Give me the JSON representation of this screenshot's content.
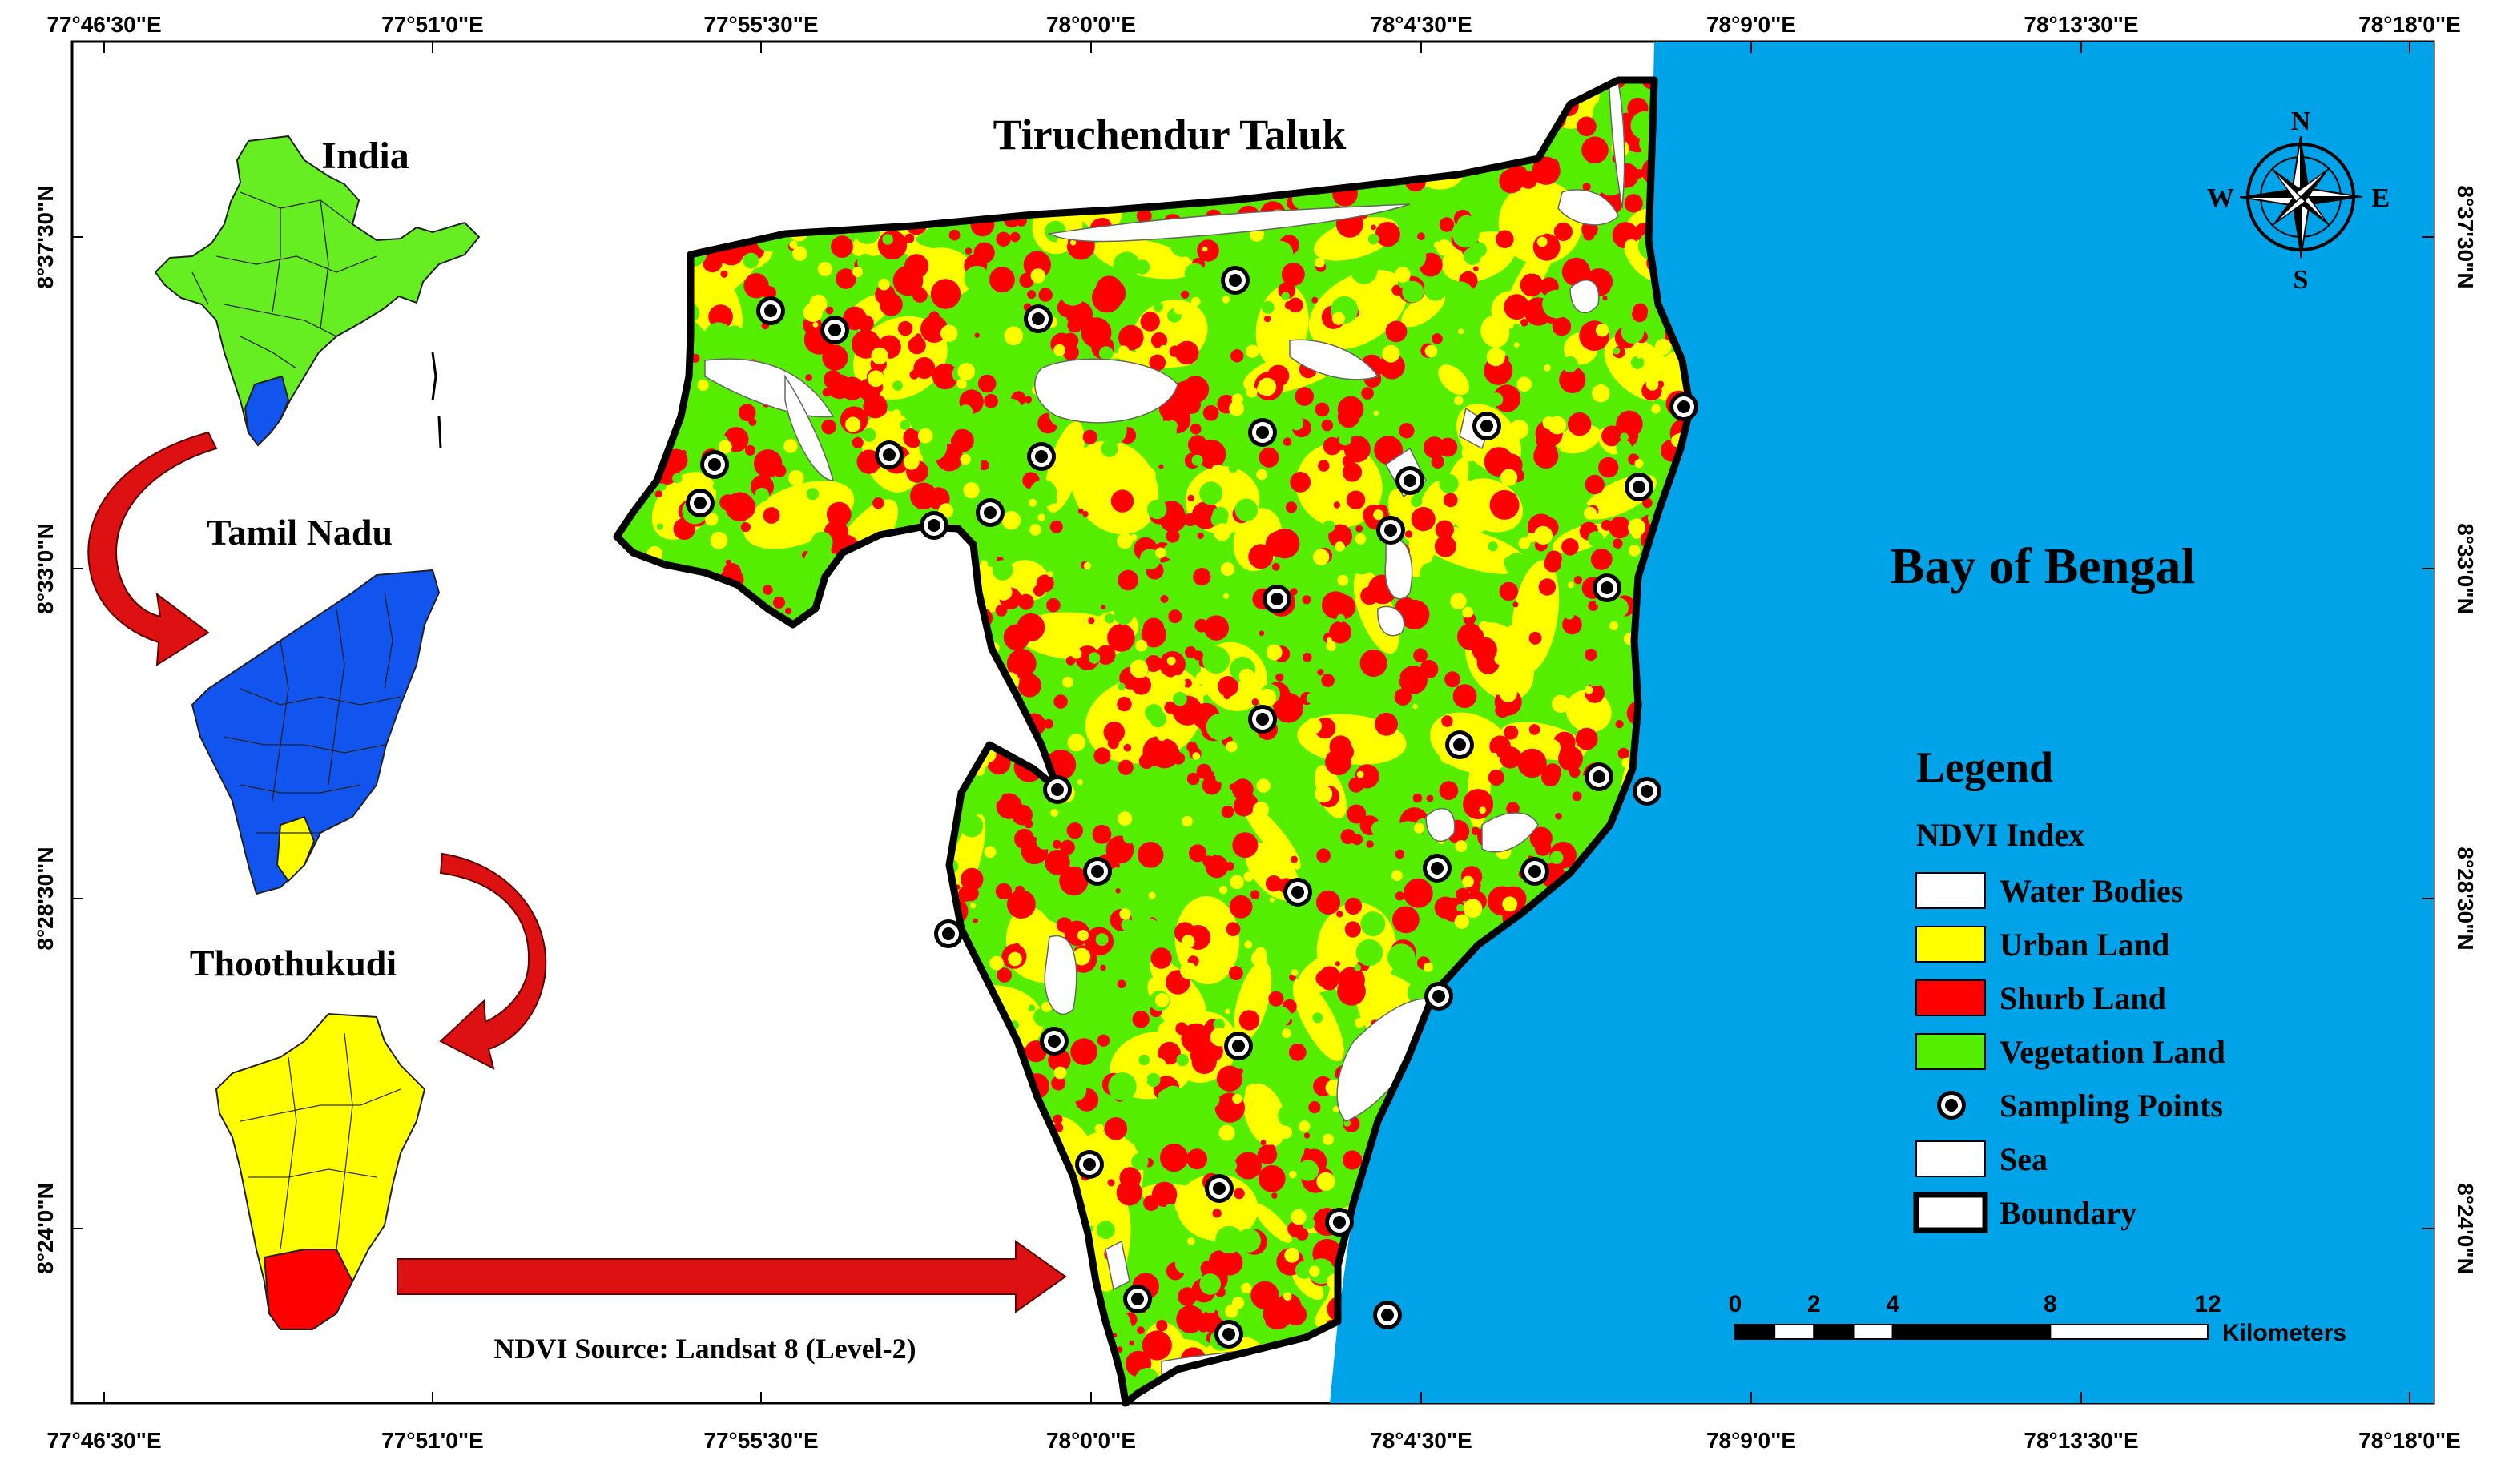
{
  "map_title": "Tiruchendur Taluk",
  "sea_label": "Bay of Bengal",
  "source_note": "NDVI Source: Landsat 8 (Level-2)",
  "inset": {
    "india_label": "India",
    "tamil_nadu_label": "Tamil Nadu",
    "thoothukudi_label": "Thoothukudi"
  },
  "coordinates": {
    "top_ticks": [
      "77°46'30\"E",
      "77°51'0\"E",
      "77°55'30\"E",
      "78°0'0\"E",
      "78°4'30\"E",
      "78°9'0\"E",
      "78°13'30\"E",
      "78°18'0\"E"
    ],
    "bottom_ticks": [
      "77°46'30\"E",
      "77°51'0\"E",
      "77°55'30\"E",
      "78°0'0\"E",
      "78°4'30\"E",
      "78°9'0\"E",
      "78°13'30\"E",
      "78°18'0\"E"
    ],
    "left_ticks": [
      "8°37'30\"N",
      "8°33'0\"N",
      "8°28'30\"N",
      "8°24'0\"N"
    ],
    "right_ticks": [
      "8°37'30\"N",
      "8°33'0\"N",
      "8°28'30\"N",
      "8°24'0\"N"
    ]
  },
  "north_arrow": {
    "n": "N",
    "s": "S",
    "e": "E",
    "w": "W"
  },
  "legend": {
    "title": "Legend",
    "subtitle": "NDVI Index",
    "items": [
      {
        "label": "Water Bodies",
        "color": "#ffffff"
      },
      {
        "label": "Urban Land",
        "color": "#ffff00"
      },
      {
        "label": "Shurb Land",
        "color": "#ff0000"
      },
      {
        "label": "Vegetation Land",
        "color": "#55ee00"
      },
      {
        "label": "Sampling Points",
        "symbol": "sampling-point"
      },
      {
        "label": "Sea",
        "color": "#ffffff"
      },
      {
        "label": "Boundary",
        "color": "#ffffff"
      }
    ]
  },
  "scale_bar": {
    "labels": [
      "0",
      "2",
      "4",
      "8",
      "12"
    ],
    "unit": "Kilometers"
  },
  "colors": {
    "sea": "#00a2e8",
    "water": "#ffffff",
    "urban": "#ffff00",
    "shrub": "#ff0000",
    "vegetation": "#55ee00",
    "india": "#66ee22",
    "tamil_nadu": "#1155ee",
    "thoothukudi": "#ffff00",
    "highlight": "#ff0000",
    "arrow": "#dd1111"
  }
}
